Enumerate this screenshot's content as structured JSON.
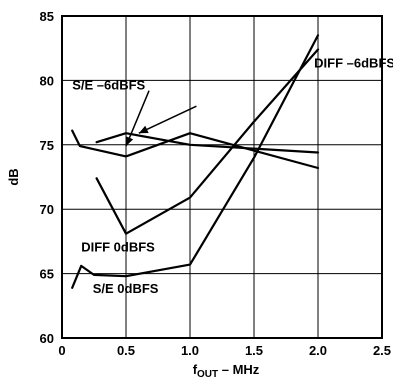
{
  "chart_data": {
    "type": "line",
    "xlabel": "f",
    "xlabel_sub": "OUT",
    "xlabel_suffix": " – MHz",
    "ylabel": "dB",
    "xlim": [
      0,
      2.5
    ],
    "ylim": [
      60,
      85
    ],
    "xticks": [
      0,
      0.5,
      1.0,
      1.5,
      2.0,
      2.5
    ],
    "xtick_labels": [
      "0",
      "0.5",
      "1.0",
      "1.5",
      "2.0",
      "2.5"
    ],
    "yticks": [
      60,
      65,
      70,
      75,
      80,
      85
    ],
    "ytick_labels": [
      "60",
      "65",
      "70",
      "75",
      "80",
      "85"
    ],
    "grid": true,
    "series": [
      {
        "name": "S/E –6dBFS",
        "x": [
          0.08,
          0.14,
          0.5,
          1.0,
          2.0
        ],
        "y": [
          76.1,
          74.9,
          74.1,
          75.9,
          73.2
        ]
      },
      {
        "name": "DIFF –6dBFS",
        "x": [
          0.27,
          0.5,
          1.0,
          2.0
        ],
        "y": [
          75.2,
          75.9,
          75.0,
          74.4
        ]
      },
      {
        "name": "DIFF 0dBFS",
        "x": [
          0.27,
          0.5,
          1.0,
          1.5,
          2.0
        ],
        "y": [
          72.4,
          68.1,
          70.9,
          76.8,
          82.4
        ]
      },
      {
        "name": "S/E 0dBFS",
        "x": [
          0.08,
          0.15,
          0.25,
          0.5,
          1.0,
          1.5,
          2.0
        ],
        "y": [
          63.9,
          65.6,
          64.9,
          64.8,
          65.7,
          74.0,
          83.5
        ]
      }
    ],
    "annotations": [
      {
        "text": "DIFF –6dBFS",
        "x": 1.97,
        "y": 81.0
      },
      {
        "text": "S/E –6dBFS",
        "x": 0.08,
        "y": 79.3
      },
      {
        "text": "DIFF 0dBFS",
        "x": 0.15,
        "y": 66.7
      },
      {
        "text": "S/E 0dBFS",
        "x": 0.24,
        "y": 63.5
      }
    ],
    "arrows": [
      {
        "from": [
          0.68,
          79.2
        ],
        "to": [
          0.5,
          74.9
        ]
      },
      {
        "from": [
          1.05,
          78.0
        ],
        "to": [
          0.6,
          75.9
        ]
      }
    ]
  }
}
